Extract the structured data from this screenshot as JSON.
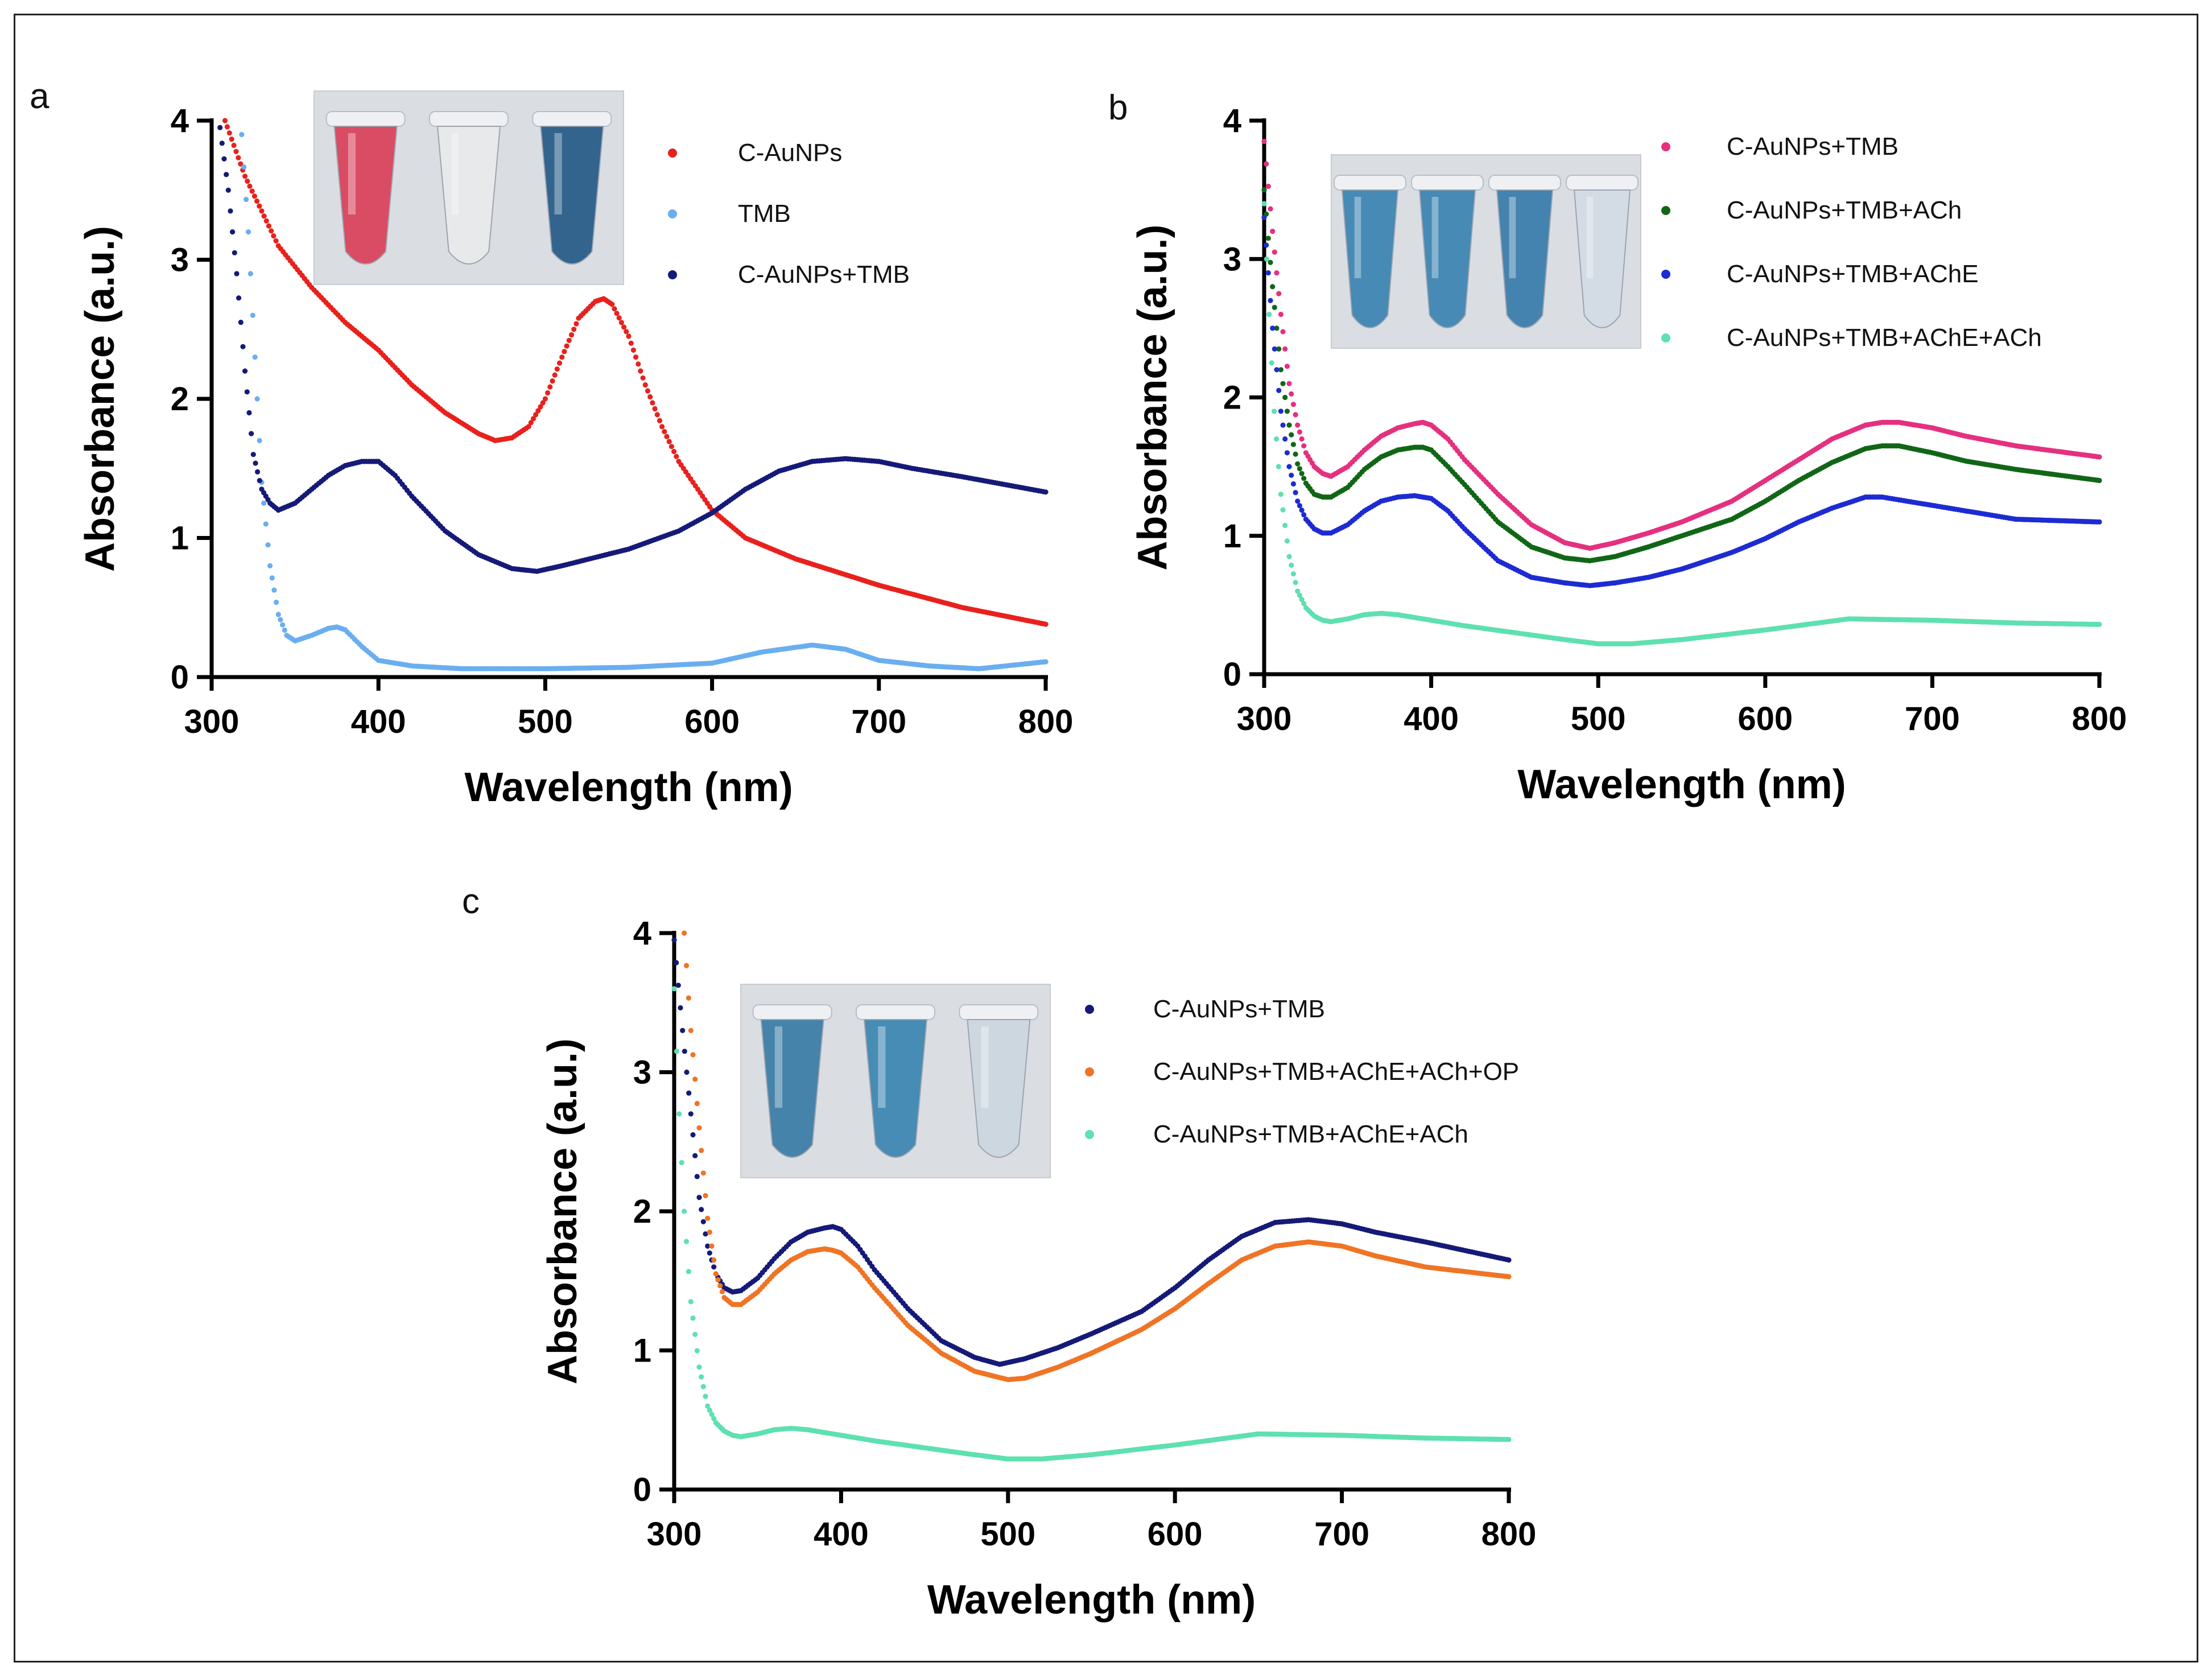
{
  "figure": {
    "panels": [
      {
        "panel_label": "a"
      },
      {
        "panel_label": "b"
      },
      {
        "panel_label": "c"
      }
    ]
  },
  "chart_data": [
    {
      "panel": "a",
      "type": "scatter",
      "xlabel": "Wavelength (nm)",
      "ylabel": "Absorbance (a.u.)",
      "xlim": [
        300,
        800
      ],
      "ylim": [
        0,
        4
      ],
      "xticks": [
        300,
        400,
        500,
        600,
        700,
        800
      ],
      "yticks": [
        0,
        1,
        2,
        3,
        4
      ],
      "grid": false,
      "legend_position": "top-right",
      "inset": {
        "tubes": [
          "#d9455e",
          "#e9eaec",
          "#2a5e8a"
        ]
      },
      "series": [
        {
          "name": "C-AuNPs",
          "color": "#e8211d",
          "x": [
            308,
            320,
            340,
            360,
            380,
            400,
            420,
            440,
            460,
            470,
            480,
            490,
            500,
            510,
            520,
            530,
            535,
            540,
            550,
            560,
            570,
            580,
            600,
            620,
            650,
            700,
            750,
            800
          ],
          "y": [
            4.0,
            3.6,
            3.1,
            2.8,
            2.55,
            2.35,
            2.1,
            1.9,
            1.75,
            1.7,
            1.72,
            1.8,
            2.0,
            2.3,
            2.58,
            2.7,
            2.72,
            2.68,
            2.45,
            2.1,
            1.8,
            1.55,
            1.2,
            1.0,
            0.85,
            0.66,
            0.5,
            0.38
          ]
        },
        {
          "name": "TMB",
          "color": "#6aaef0",
          "x": [
            318,
            322,
            326,
            330,
            335,
            340,
            345,
            350,
            360,
            370,
            375,
            380,
            390,
            400,
            420,
            450,
            500,
            550,
            600,
            630,
            660,
            680,
            700,
            730,
            760,
            800
          ],
          "y": [
            3.9,
            3.2,
            2.3,
            1.4,
            0.8,
            0.45,
            0.3,
            0.26,
            0.3,
            0.35,
            0.36,
            0.34,
            0.22,
            0.12,
            0.08,
            0.06,
            0.06,
            0.07,
            0.1,
            0.18,
            0.23,
            0.2,
            0.12,
            0.08,
            0.06,
            0.11
          ]
        },
        {
          "name": "C-AuNPs+TMB",
          "color": "#151a78",
          "x": [
            305,
            310,
            315,
            320,
            325,
            330,
            335,
            340,
            350,
            360,
            370,
            380,
            390,
            400,
            410,
            420,
            440,
            460,
            480,
            495,
            510,
            530,
            550,
            580,
            600,
            620,
            640,
            660,
            680,
            700,
            720,
            750,
            800
          ],
          "y": [
            3.95,
            3.5,
            2.9,
            2.2,
            1.6,
            1.35,
            1.25,
            1.2,
            1.25,
            1.35,
            1.45,
            1.52,
            1.55,
            1.55,
            1.45,
            1.3,
            1.05,
            0.88,
            0.78,
            0.76,
            0.8,
            0.86,
            0.92,
            1.05,
            1.18,
            1.35,
            1.48,
            1.55,
            1.57,
            1.55,
            1.5,
            1.44,
            1.33
          ]
        }
      ]
    },
    {
      "panel": "b",
      "type": "scatter",
      "xlabel": "Wavelength (nm)",
      "ylabel": "Absorbance (a.u.)",
      "xlim": [
        300,
        800
      ],
      "ylim": [
        0,
        4
      ],
      "xticks": [
        300,
        400,
        500,
        600,
        700,
        800
      ],
      "yticks": [
        0,
        1,
        2,
        3,
        4
      ],
      "grid": false,
      "legend_position": "top-right",
      "inset": {
        "tubes": [
          "#3f86b3",
          "#3f86b3",
          "#3c7fad",
          "#d3dbe5"
        ]
      },
      "series": [
        {
          "name": "C-AuNPs+TMB",
          "color": "#e4307f",
          "x": [
            300,
            305,
            310,
            315,
            320,
            325,
            330,
            335,
            340,
            350,
            360,
            370,
            380,
            390,
            395,
            400,
            410,
            420,
            440,
            460,
            480,
            495,
            510,
            530,
            550,
            580,
            600,
            620,
            640,
            660,
            670,
            680,
            700,
            720,
            750,
            800
          ],
          "y": [
            3.85,
            3.2,
            2.6,
            2.1,
            1.8,
            1.6,
            1.5,
            1.45,
            1.43,
            1.5,
            1.62,
            1.72,
            1.78,
            1.81,
            1.82,
            1.8,
            1.7,
            1.55,
            1.3,
            1.08,
            0.95,
            0.91,
            0.95,
            1.02,
            1.1,
            1.25,
            1.4,
            1.55,
            1.7,
            1.8,
            1.82,
            1.82,
            1.78,
            1.72,
            1.65,
            1.57
          ]
        },
        {
          "name": "C-AuNPs+TMB+ACh",
          "color": "#116616",
          "x": [
            300,
            305,
            310,
            315,
            320,
            325,
            330,
            335,
            340,
            350,
            360,
            370,
            380,
            390,
            395,
            400,
            410,
            420,
            440,
            460,
            480,
            495,
            510,
            530,
            550,
            580,
            600,
            620,
            640,
            660,
            670,
            680,
            700,
            720,
            750,
            800
          ],
          "y": [
            3.5,
            2.8,
            2.2,
            1.8,
            1.52,
            1.38,
            1.3,
            1.28,
            1.28,
            1.35,
            1.48,
            1.57,
            1.62,
            1.64,
            1.64,
            1.62,
            1.5,
            1.37,
            1.1,
            0.92,
            0.84,
            0.82,
            0.85,
            0.92,
            1.0,
            1.12,
            1.25,
            1.4,
            1.53,
            1.63,
            1.65,
            1.65,
            1.6,
            1.54,
            1.48,
            1.4
          ]
        },
        {
          "name": "C-AuNPs+TMB+AChE",
          "color": "#1d2bd2",
          "x": [
            300,
            305,
            310,
            315,
            320,
            325,
            330,
            335,
            340,
            350,
            360,
            370,
            380,
            390,
            400,
            410,
            420,
            440,
            460,
            480,
            495,
            510,
            530,
            550,
            580,
            600,
            620,
            640,
            660,
            670,
            680,
            700,
            720,
            750,
            800
          ],
          "y": [
            3.3,
            2.5,
            1.9,
            1.5,
            1.25,
            1.12,
            1.05,
            1.02,
            1.02,
            1.08,
            1.18,
            1.25,
            1.28,
            1.29,
            1.27,
            1.18,
            1.05,
            0.82,
            0.7,
            0.66,
            0.64,
            0.66,
            0.7,
            0.76,
            0.88,
            0.98,
            1.1,
            1.2,
            1.28,
            1.28,
            1.26,
            1.22,
            1.18,
            1.12,
            1.1
          ]
        },
        {
          "name": "C-AuNPs+TMB+AChE+ACh",
          "color": "#5ee0b0",
          "x": [
            300,
            303,
            306,
            310,
            315,
            320,
            325,
            330,
            335,
            340,
            350,
            360,
            370,
            380,
            390,
            400,
            420,
            450,
            480,
            500,
            520,
            550,
            600,
            650,
            700,
            750,
            800
          ],
          "y": [
            3.4,
            2.6,
            1.9,
            1.3,
            0.85,
            0.6,
            0.48,
            0.42,
            0.39,
            0.38,
            0.4,
            0.43,
            0.44,
            0.43,
            0.41,
            0.39,
            0.35,
            0.3,
            0.25,
            0.22,
            0.22,
            0.25,
            0.32,
            0.4,
            0.39,
            0.37,
            0.36
          ]
        }
      ]
    },
    {
      "panel": "c",
      "type": "scatter",
      "xlabel": "Wavelength (nm)",
      "ylabel": "Absorbance (a.u.)",
      "xlim": [
        300,
        800
      ],
      "ylim": [
        0,
        4
      ],
      "xticks": [
        300,
        400,
        500,
        600,
        700,
        800
      ],
      "yticks": [
        0,
        1,
        2,
        3,
        4
      ],
      "grid": false,
      "legend_position": "top-right",
      "inset": {
        "tubes": [
          "#3f7fa8",
          "#3f88b3",
          "#cdd7e0"
        ]
      },
      "series": [
        {
          "name": "C-AuNPs+TMB",
          "color": "#151a78",
          "x": [
            300,
            305,
            310,
            315,
            320,
            325,
            330,
            335,
            340,
            350,
            360,
            370,
            380,
            390,
            395,
            400,
            410,
            420,
            440,
            460,
            480,
            495,
            510,
            530,
            550,
            580,
            600,
            620,
            640,
            660,
            680,
            700,
            720,
            750,
            800
          ],
          "y": [
            3.95,
            3.3,
            2.7,
            2.1,
            1.75,
            1.55,
            1.45,
            1.42,
            1.43,
            1.52,
            1.66,
            1.78,
            1.85,
            1.88,
            1.89,
            1.87,
            1.75,
            1.58,
            1.3,
            1.07,
            0.95,
            0.9,
            0.94,
            1.02,
            1.12,
            1.28,
            1.45,
            1.65,
            1.82,
            1.92,
            1.94,
            1.91,
            1.85,
            1.78,
            1.65
          ]
        },
        {
          "name": "C-AuNPs+TMB+AChE+ACh+OP",
          "color": "#ef7424",
          "x": [
            306,
            310,
            315,
            320,
            325,
            330,
            335,
            340,
            350,
            360,
            370,
            380,
            390,
            395,
            400,
            410,
            420,
            440,
            460,
            480,
            500,
            510,
            530,
            550,
            580,
            600,
            620,
            640,
            660,
            680,
            700,
            720,
            750,
            800
          ],
          "y": [
            4.0,
            3.3,
            2.6,
            1.95,
            1.55,
            1.38,
            1.33,
            1.33,
            1.42,
            1.55,
            1.65,
            1.71,
            1.73,
            1.72,
            1.7,
            1.6,
            1.45,
            1.18,
            0.98,
            0.85,
            0.79,
            0.8,
            0.88,
            0.98,
            1.15,
            1.3,
            1.48,
            1.65,
            1.75,
            1.78,
            1.75,
            1.68,
            1.6,
            1.53
          ]
        },
        {
          "name": "C-AuNPs+TMB+AChE+ACh",
          "color": "#5ee0b0",
          "x": [
            300,
            303,
            306,
            310,
            315,
            320,
            325,
            330,
            335,
            340,
            350,
            360,
            370,
            380,
            390,
            400,
            420,
            450,
            480,
            500,
            520,
            550,
            600,
            650,
            700,
            750,
            800
          ],
          "y": [
            3.6,
            2.7,
            2.0,
            1.35,
            0.88,
            0.6,
            0.48,
            0.42,
            0.39,
            0.38,
            0.4,
            0.43,
            0.44,
            0.43,
            0.41,
            0.39,
            0.35,
            0.3,
            0.25,
            0.22,
            0.22,
            0.25,
            0.32,
            0.4,
            0.39,
            0.37,
            0.36
          ]
        }
      ]
    }
  ]
}
